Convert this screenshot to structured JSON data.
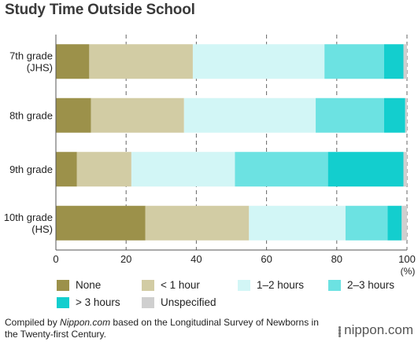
{
  "chart_data": {
    "type": "bar",
    "orientation": "horizontal",
    "stacked": true,
    "title": "Study Time Outside School",
    "categories": [
      "7th grade\n(JHS)",
      "8th grade",
      "9th grade",
      "10th grade\n(HS)"
    ],
    "xlim": [
      0,
      100
    ],
    "xticks": [
      0,
      20,
      40,
      60,
      80,
      100
    ],
    "xunit": "(%)",
    "grid": true,
    "legend_position": "bottom",
    "series": [
      {
        "name": "None",
        "color": "#9c914a",
        "values": [
          9.5,
          10,
          6,
          25.5
        ]
      },
      {
        "name": "< 1 hour",
        "color": "#d2cca4",
        "values": [
          29.5,
          26.5,
          15.5,
          29.5
        ]
      },
      {
        "name": "1–2 hours",
        "color": "#d2f6f6",
        "values": [
          37.5,
          37.5,
          29.5,
          27.5
        ]
      },
      {
        "name": "2–3 hours",
        "color": "#6ce2e2",
        "values": [
          17,
          19.5,
          26.5,
          12
        ]
      },
      {
        "name": "> 3 hours",
        "color": "#13cece",
        "values": [
          5.5,
          6,
          21.5,
          4
        ]
      },
      {
        "name": "Unspecified",
        "color": "#cfcfcf",
        "values": [
          1,
          0.5,
          1,
          1.5
        ]
      }
    ]
  },
  "source": {
    "prefix": "Compiled by ",
    "site": "Nippon.com",
    "suffix": " based on the Longitudinal Survey of Newborns in the Twenty-first Century."
  },
  "brand": "nippon.com"
}
